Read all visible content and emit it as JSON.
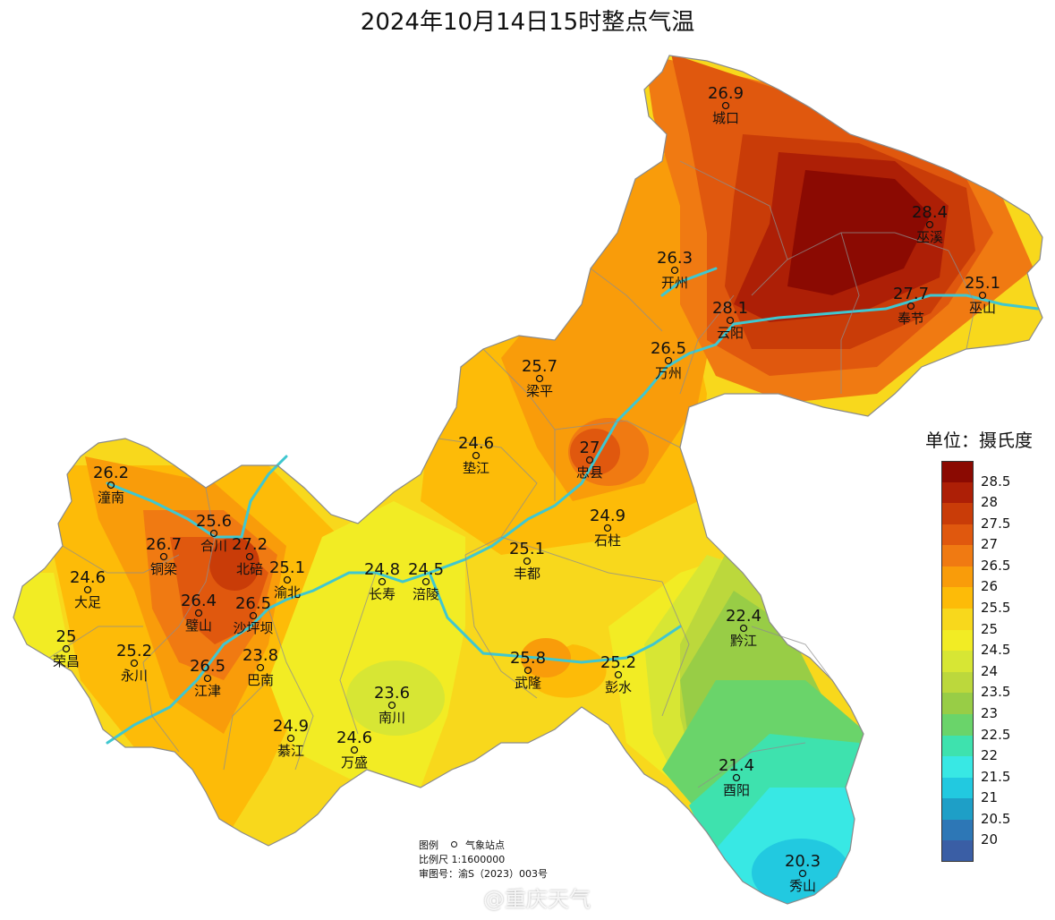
{
  "title": "2024年10月14日15时整点气温",
  "legend": {
    "unit": "单位：摄氏度",
    "ticks": [
      "28.5",
      "28",
      "27.5",
      "27",
      "26.5",
      "26",
      "25.5",
      "25",
      "24.5",
      "24",
      "23.5",
      "23",
      "22.5",
      "22",
      "21.5",
      "21",
      "20.5",
      "20"
    ],
    "colors": [
      "#8b0a02",
      "#ad1f06",
      "#c93c08",
      "#e0580e",
      "#f07a12",
      "#f99c0a",
      "#fdbb08",
      "#f8d81c",
      "#f2ec24",
      "#d7e634",
      "#bcd83c",
      "#98cd46",
      "#6ad46a",
      "#3ee2ae",
      "#38e8e4",
      "#22c9e0",
      "#1e9fc7",
      "#2d77b6",
      "#3a5ea5"
    ]
  },
  "stations": [
    {
      "value": "26.9",
      "name": "城口",
      "tier": "c27"
    },
    {
      "value": "28.4",
      "name": "巫溪",
      "tier": "c285"
    },
    {
      "value": "26.3",
      "name": "开州",
      "tier": "c265"
    },
    {
      "value": "28.1",
      "name": "云阳",
      "tier": "c285"
    },
    {
      "value": "27.7",
      "name": "奉节",
      "tier": "c28"
    },
    {
      "value": "25.1",
      "name": "巫山",
      "tier": "c255"
    },
    {
      "value": "26.5",
      "name": "万州",
      "tier": "c265"
    },
    {
      "value": "25.7",
      "name": "梁平",
      "tier": "c26"
    },
    {
      "value": "27",
      "name": "忠县",
      "tier": "c27"
    },
    {
      "value": "24.6",
      "name": "垫江",
      "tier": "c25"
    },
    {
      "value": "26.2",
      "name": "潼南",
      "tier": "c265"
    },
    {
      "value": "25.6",
      "name": "合川",
      "tier": "c26"
    },
    {
      "value": "26.7",
      "name": "铜梁",
      "tier": "c27"
    },
    {
      "value": "27.2",
      "name": "北碚",
      "tier": "c275"
    },
    {
      "value": "25.1",
      "name": "渝北",
      "tier": "c255"
    },
    {
      "value": "24.8",
      "name": "长寿",
      "tier": "c25"
    },
    {
      "value": "24.5",
      "name": "涪陵",
      "tier": "c245"
    },
    {
      "value": "25.1",
      "name": "丰都",
      "tier": "c255"
    },
    {
      "value": "24.9",
      "name": "石柱",
      "tier": "c25"
    },
    {
      "value": "24.6",
      "name": "大足",
      "tier": "c25"
    },
    {
      "value": "26.4",
      "name": "璧山",
      "tier": "c265"
    },
    {
      "value": "26.5",
      "name": "沙坪坝",
      "tier": "c265"
    },
    {
      "value": "25",
      "name": "荣昌",
      "tier": "c25"
    },
    {
      "value": "25.2",
      "name": "永川",
      "tier": "c255"
    },
    {
      "value": "23.8",
      "name": "巴南",
      "tier": "c24"
    },
    {
      "value": "26.5",
      "name": "江津",
      "tier": "c265"
    },
    {
      "value": "23.6",
      "name": "南川",
      "tier": "c24"
    },
    {
      "value": "25.8",
      "name": "武隆",
      "tier": "c26"
    },
    {
      "value": "25.2",
      "name": "彭水",
      "tier": "c255"
    },
    {
      "value": "22.4",
      "name": "黔江",
      "tier": "c225"
    },
    {
      "value": "24.9",
      "name": "綦江",
      "tier": "c25"
    },
    {
      "value": "24.6",
      "name": "万盛",
      "tier": "c25"
    },
    {
      "value": "21.4",
      "name": "酉阳",
      "tier": "c215"
    },
    {
      "value": "20.3",
      "name": "秀山",
      "tier": "c205"
    }
  ],
  "info": {
    "legend_label": "图例",
    "station_label": "气象站点",
    "scale": "比例尺   1:1600000",
    "review": "审图号：渝S（2023）003号"
  },
  "watermark": "@重庆天气"
}
